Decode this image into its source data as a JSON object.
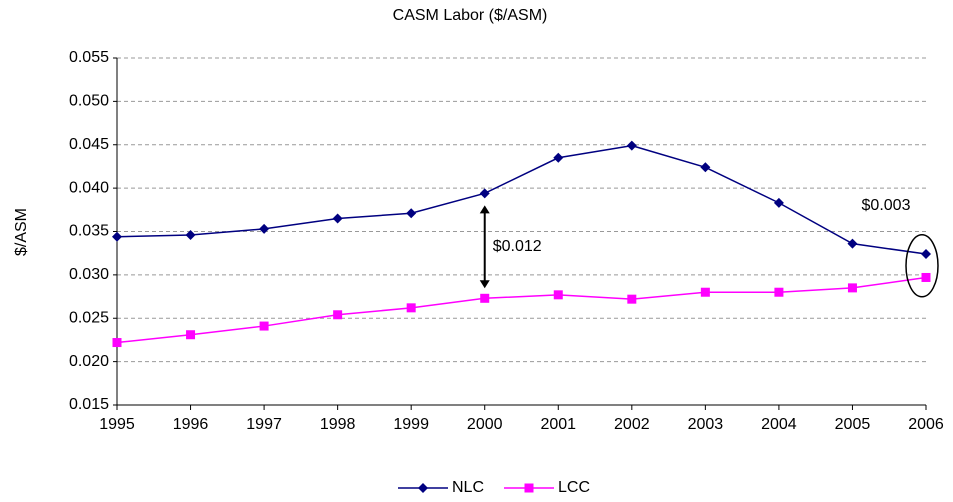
{
  "chart_data": {
    "type": "line",
    "title": "CASM Labor ($/ASM)",
    "y_label": "$/ASM",
    "categories": [
      "1995",
      "1996",
      "1997",
      "1998",
      "1999",
      "2000",
      "2001",
      "2002",
      "2003",
      "2004",
      "2005",
      "2006"
    ],
    "series": [
      {
        "name": "NLC",
        "color": "#000080",
        "marker": "diamond",
        "values": [
          0.0344,
          0.0346,
          0.0353,
          0.0365,
          0.0371,
          0.0394,
          0.0435,
          0.0449,
          0.0424,
          0.0383,
          0.0336,
          0.0324
        ]
      },
      {
        "name": "LCC",
        "color": "#ff00ff",
        "marker": "square",
        "values": [
          0.0222,
          0.0231,
          0.0241,
          0.0254,
          0.0262,
          0.0273,
          0.0277,
          0.0272,
          0.028,
          0.028,
          0.0285,
          0.0297
        ]
      }
    ],
    "ylim": [
      0.015,
      0.055
    ],
    "yticks": [
      0.015,
      {
        "value": 0.02,
        "label": "0.020"
      },
      0.025,
      {
        "value": 0.03,
        "label": "0.030"
      },
      0.035,
      {
        "value": 0.04,
        "label": "0.040"
      },
      0.045,
      {
        "value": 0.05,
        "label": "0.050"
      },
      0.055
    ],
    "grid": true,
    "legend": "bottom",
    "annotations": [
      {
        "text": "$0.012",
        "category": "2000"
      },
      {
        "text": "$0.003",
        "category": "2006"
      }
    ]
  }
}
